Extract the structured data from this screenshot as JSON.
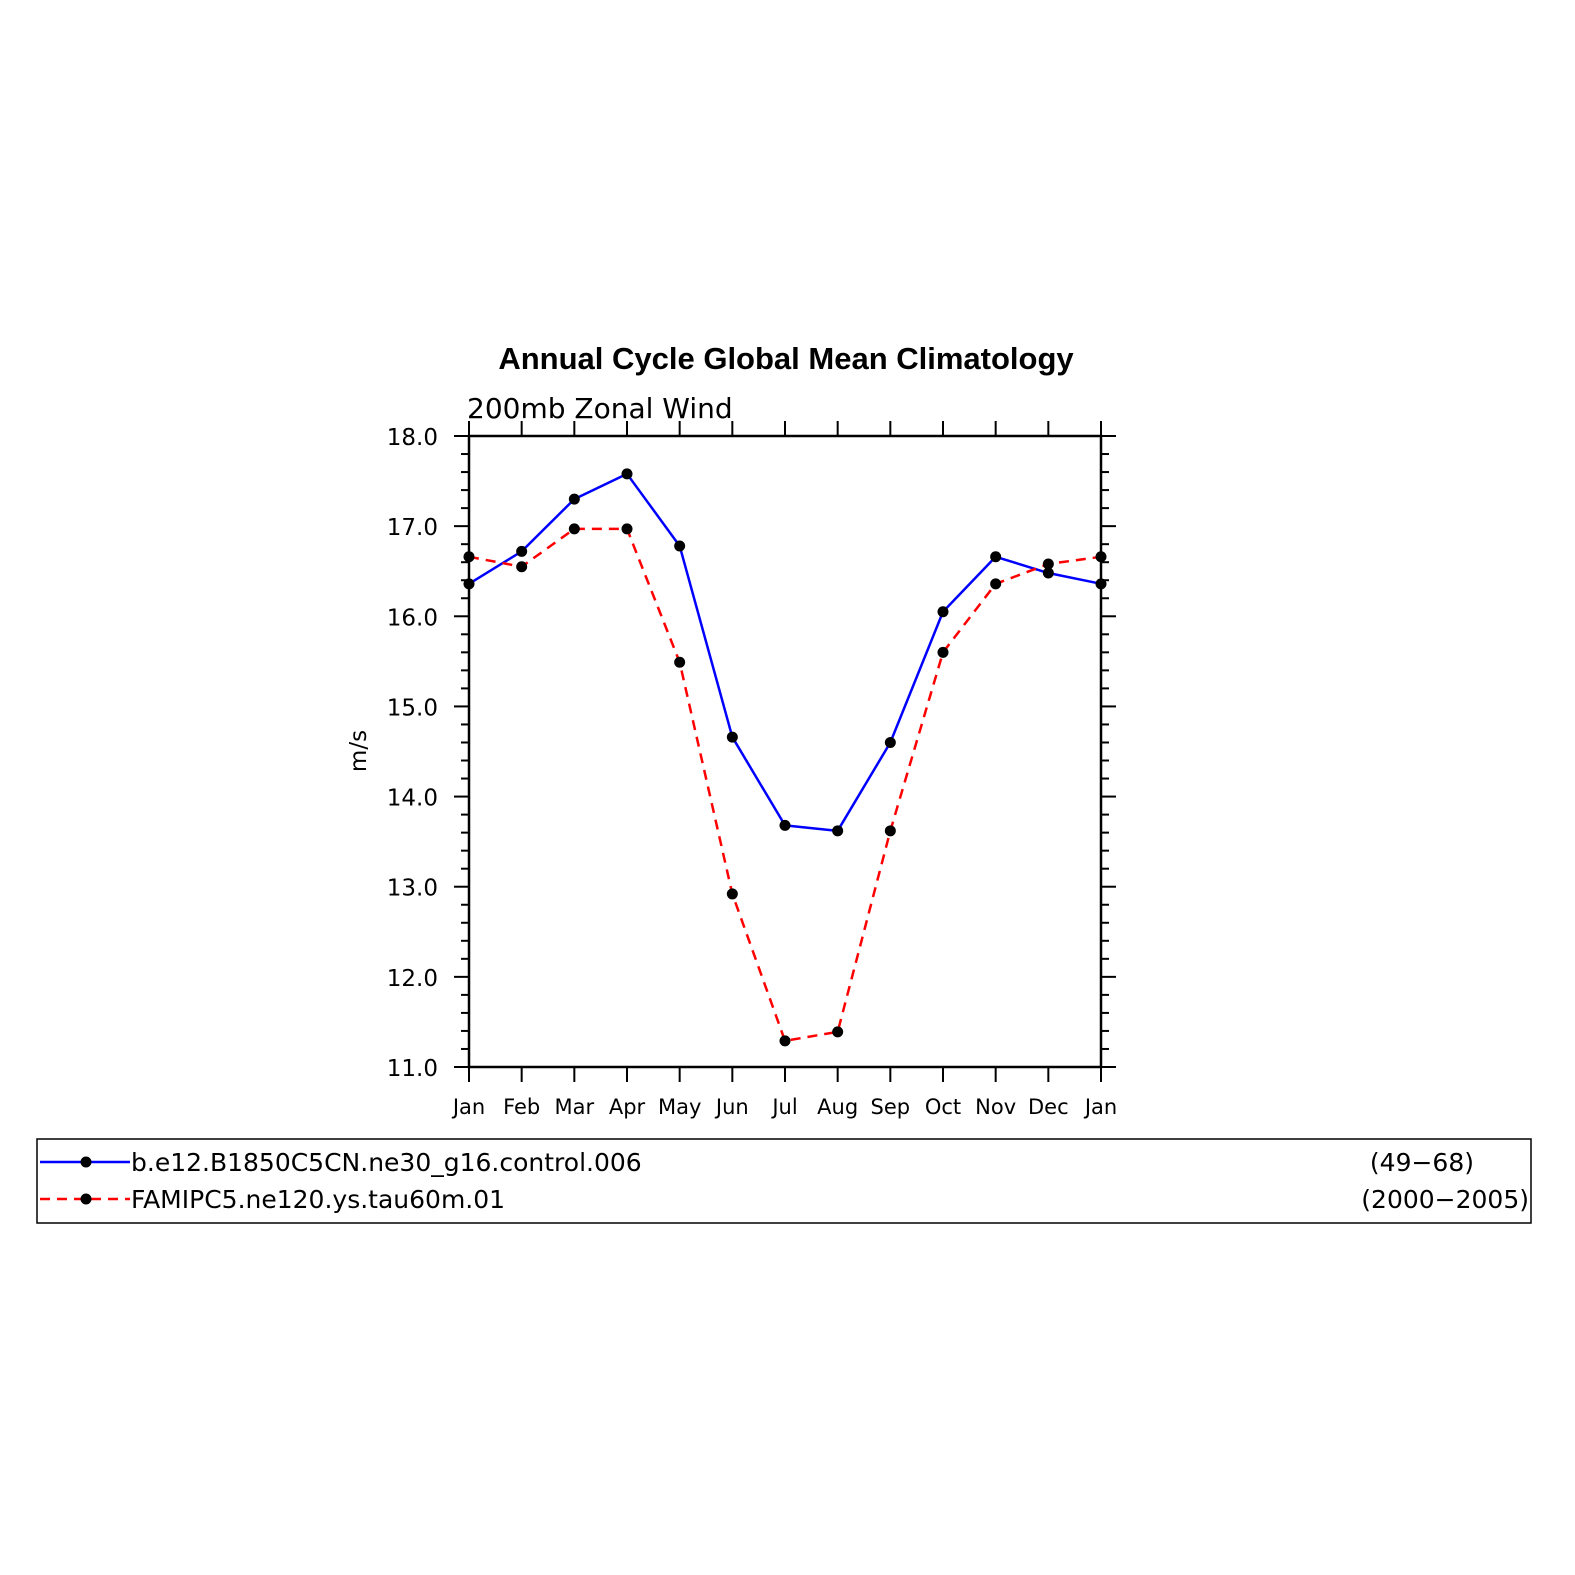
{
  "chart_data": {
    "type": "line",
    "title": "Annual Cycle Global Mean Climatology",
    "subtitle": "200mb Zonal Wind",
    "ylabel": "m/s",
    "xlabel": "",
    "ylim": [
      11.0,
      18.0
    ],
    "yticks": [
      "11.0",
      "12.0",
      "13.0",
      "14.0",
      "15.0",
      "16.0",
      "17.0",
      "18.0"
    ],
    "categories": [
      "Jan",
      "Feb",
      "Mar",
      "Apr",
      "May",
      "Jun",
      "Jul",
      "Aug",
      "Sep",
      "Oct",
      "Nov",
      "Dec",
      "Jan"
    ],
    "series": [
      {
        "name": "b.e12.B1850C5CN.ne30_g16.control.006",
        "years": "(49−68)",
        "color": "#0000ff",
        "style": "solid",
        "values": [
          16.36,
          16.72,
          17.3,
          17.58,
          16.78,
          14.66,
          13.68,
          13.62,
          14.6,
          16.05,
          16.66,
          16.48,
          16.36
        ]
      },
      {
        "name": "FAMIPC5.ne120.ys.tau60m.01",
        "years": "(2000−2005)",
        "color": "#ff0000",
        "style": "dashed",
        "values": [
          16.66,
          16.55,
          16.97,
          16.97,
          15.49,
          12.92,
          11.29,
          11.39,
          13.62,
          15.6,
          16.36,
          16.58,
          16.66
        ]
      }
    ],
    "marker_color": "#000000",
    "grid": false,
    "legend_position": "bottom"
  }
}
